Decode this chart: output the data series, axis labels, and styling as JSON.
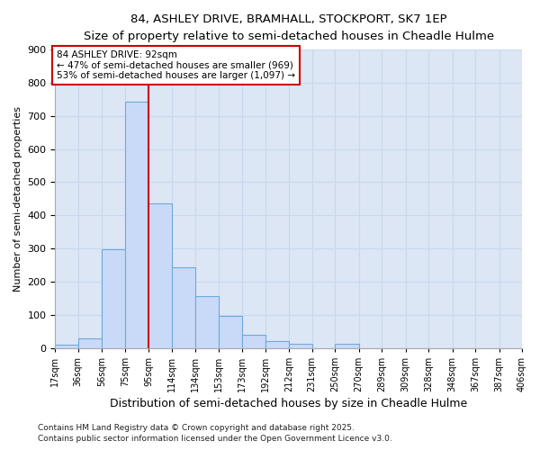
{
  "title_line1": "84, ASHLEY DRIVE, BRAMHALL, STOCKPORT, SK7 1EP",
  "title_line2": "Size of property relative to semi-detached houses in Cheadle Hulme",
  "xlabel": "Distribution of semi-detached houses by size in Cheadle Hulme",
  "ylabel": "Number of semi-detached properties",
  "footnote_line1": "Contains HM Land Registry data © Crown copyright and database right 2025.",
  "footnote_line2": "Contains public sector information licensed under the Open Government Licence v3.0.",
  "bins": [
    17,
    36,
    56,
    75,
    95,
    114,
    134,
    153,
    173,
    192,
    212,
    231,
    250,
    270,
    289,
    309,
    328,
    348,
    367,
    387,
    406
  ],
  "bin_labels": [
    "17sqm",
    "36sqm",
    "56sqm",
    "75sqm",
    "95sqm",
    "114sqm",
    "134sqm",
    "153sqm",
    "173sqm",
    "192sqm",
    "212sqm",
    "231sqm",
    "250sqm",
    "270sqm",
    "289sqm",
    "309sqm",
    "328sqm",
    "348sqm",
    "367sqm",
    "387sqm",
    "406sqm"
  ],
  "bar_values": [
    10,
    28,
    297,
    742,
    435,
    244,
    157,
    97,
    40,
    22,
    13,
    0,
    12,
    0,
    0,
    0,
    0,
    0,
    0,
    0
  ],
  "bar_color": "#c9daf8",
  "bar_edge_color": "#6fa8dc",
  "vline_x": 95,
  "vline_color": "#cc0000",
  "annotation_text": "84 ASHLEY DRIVE: 92sqm\n← 47% of semi-detached houses are smaller (969)\n53% of semi-detached houses are larger (1,097) →",
  "ylim": [
    0,
    900
  ],
  "yticks": [
    0,
    100,
    200,
    300,
    400,
    500,
    600,
    700,
    800,
    900
  ],
  "grid_color": "#c8d8ee",
  "bg_color": "#ffffff",
  "plot_bg_color": "#dce6f5"
}
